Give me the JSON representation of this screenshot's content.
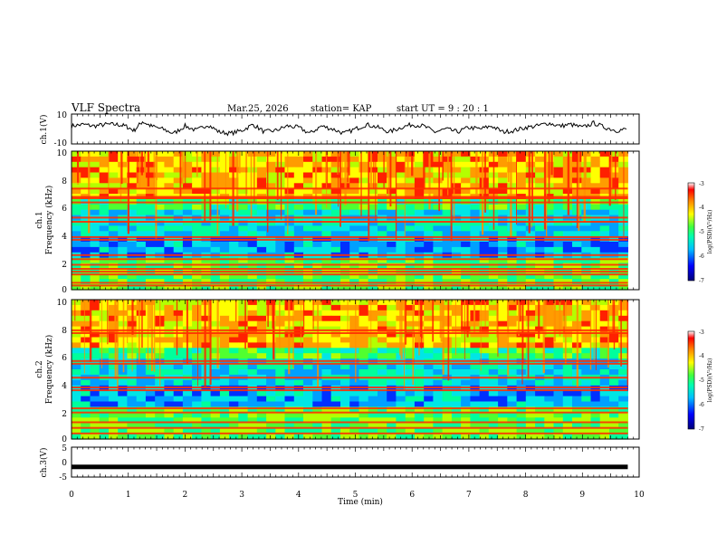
{
  "header": {
    "title": "VLF Spectra",
    "date": "Mar.25, 2026",
    "station": "station= KAP",
    "start": "start  UT  =   9  : 20 : 1"
  },
  "chart_data": [
    {
      "type": "line",
      "name": "ch1-waveform",
      "ylabel": "ch.1(V)",
      "ylim": [
        -10,
        10
      ],
      "yticks": [
        "10",
        "-10"
      ],
      "xlim": [
        0,
        9.8
      ],
      "series": [
        {
          "name": "ch.1",
          "x": [
            0.0,
            0.2,
            0.4,
            0.6,
            0.8,
            0.95,
            1.1,
            1.25,
            1.4,
            1.6,
            1.8,
            2.0,
            2.2,
            2.4,
            2.6,
            2.8,
            3.0,
            3.2,
            3.4,
            3.6,
            3.8,
            4.0,
            4.2,
            4.4,
            4.6,
            4.8,
            5.0,
            5.2,
            5.4,
            5.6,
            5.8,
            6.0,
            6.2,
            6.4,
            6.6,
            6.8,
            7.0,
            7.2,
            7.4,
            7.6,
            7.8,
            8.0,
            8.2,
            8.4,
            8.6,
            8.8,
            9.0,
            9.2,
            9.4,
            9.6,
            9.8
          ],
          "values": [
            2,
            3,
            2,
            3,
            3,
            2,
            -1,
            5,
            2,
            0,
            -3,
            2,
            -1,
            3,
            -2,
            -3,
            -1,
            3,
            -2,
            -1,
            2,
            1,
            -3,
            2,
            0,
            -3,
            0,
            3,
            1,
            -2,
            1,
            3,
            2,
            -2,
            0,
            -2,
            1,
            0,
            2,
            -2,
            -1,
            1,
            2,
            4,
            2,
            3,
            1,
            4,
            1,
            -1,
            0
          ]
        }
      ]
    },
    {
      "type": "heatmap",
      "name": "ch1-spectrogram",
      "ylabel": "ch.1",
      "ylabel2": "Frequency (kHz)",
      "xlim": [
        0,
        9.8
      ],
      "ylim": [
        0,
        10
      ],
      "yticks": [
        "0",
        "2",
        "4",
        "6",
        "8",
        "10"
      ],
      "bands_khz": [
        0.3,
        0.5,
        1.1,
        1.3,
        1.5,
        1.8,
        2.2,
        2.5,
        3.6,
        3.8,
        4.9,
        5.2,
        6.3,
        6.6,
        6.7,
        7.3
      ],
      "colorbar": {
        "range": [
          -7,
          -3
        ],
        "ticks": [
          "-3",
          "-4",
          "-5",
          "-6",
          "-7"
        ],
        "label": "log(PSD)(V²/Hz)"
      }
    },
    {
      "type": "heatmap",
      "name": "ch2-spectrogram",
      "ylabel": "ch.2",
      "ylabel2": "Frequency (kHz)",
      "xlim": [
        0,
        9.8
      ],
      "ylim": [
        0,
        10
      ],
      "yticks": [
        "0",
        "2",
        "4",
        "6",
        "8",
        "10"
      ],
      "bands_khz": [
        0.4,
        0.8,
        1.2,
        1.9,
        2.2,
        3.5,
        3.7,
        4.4,
        5.4,
        5.6,
        7.6,
        7.8
      ],
      "colorbar": {
        "range": [
          -7,
          -3
        ],
        "ticks": [
          "-3",
          "-4",
          "-5",
          "-6",
          "-7"
        ],
        "label": "log(PSD)(V²/Hz)"
      }
    },
    {
      "type": "line",
      "name": "ch3-waveform",
      "ylabel": "ch.3(V)",
      "ylim": [
        -5,
        5
      ],
      "yticks": [
        "5",
        "0",
        "-5"
      ],
      "xlim": [
        0,
        9.8
      ],
      "series": [
        {
          "name": "ch.3",
          "x": [
            0,
            9.8
          ],
          "values": [
            -1.6,
            -1.6
          ]
        }
      ]
    }
  ],
  "xaxis": {
    "label": "Time  (min)",
    "ticks": [
      "0",
      "1",
      "2",
      "3",
      "4",
      "5",
      "6",
      "7",
      "8",
      "9",
      "10"
    ],
    "range": [
      0,
      10
    ]
  }
}
